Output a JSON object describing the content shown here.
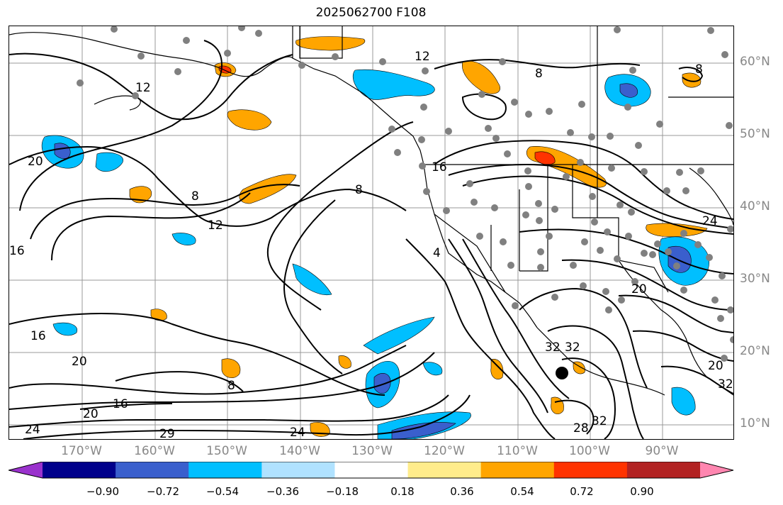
{
  "title": "2025062700 F108",
  "lat_labels": [
    "60°N",
    "50°N",
    "40°N",
    "30°N",
    "20°N",
    "10°N"
  ],
  "lon_labels": [
    "170°W",
    "160°W",
    "150°W",
    "140°W",
    "130°W",
    "120°W",
    "110°W",
    "100°W",
    "90°W"
  ],
  "contour_labels": [
    "4",
    "8",
    "8",
    "8",
    "8",
    "8",
    "12",
    "12",
    "12",
    "16",
    "16",
    "16",
    "16",
    "20",
    "20",
    "20",
    "20",
    "20",
    "24",
    "24",
    "24",
    "28",
    "29",
    "32",
    "32",
    "32",
    "32"
  ],
  "colorbar": {
    "tick_labels": [
      "−0.90",
      "−0.72",
      "−0.54",
      "−0.36",
      "−0.18",
      "0.18",
      "0.36",
      "0.54",
      "0.72",
      "0.90"
    ],
    "colors": [
      "#9a32cd",
      "#00008b",
      "#3a5fcd",
      "#00bfff",
      "#b0e2ff",
      "#ffffff",
      "#ffec8b",
      "#ffa500",
      "#ff3300",
      "#b22222",
      "#ff86b0"
    ]
  }
}
